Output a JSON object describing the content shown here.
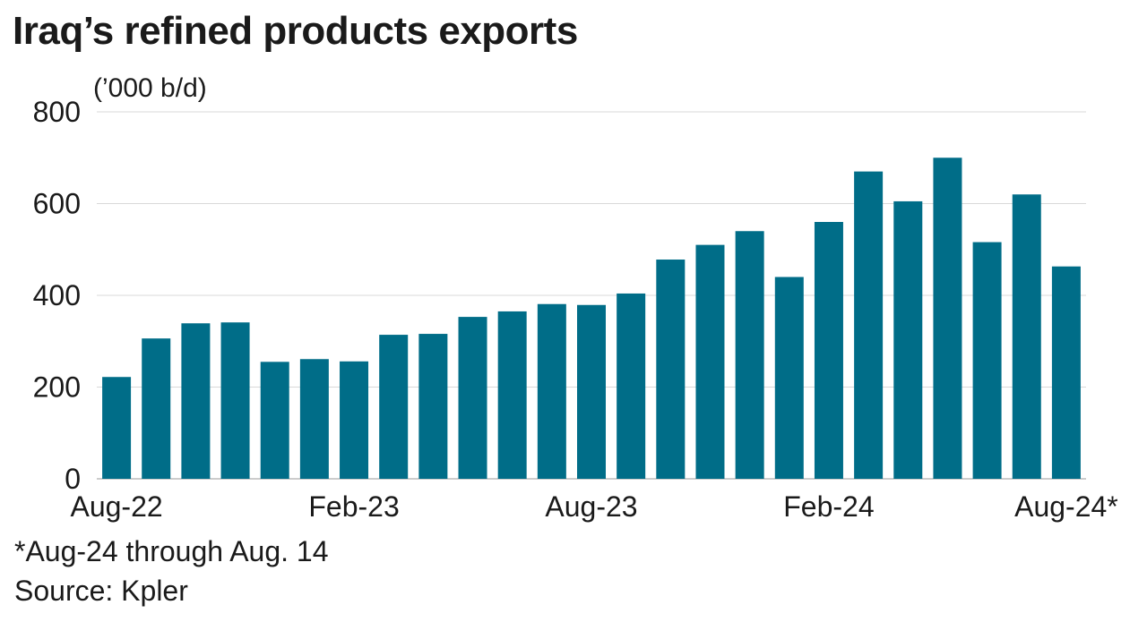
{
  "chart_data": {
    "type": "bar",
    "title": "Iraq’s refined products exports",
    "unit_label": "(’000 b/d)",
    "categories": [
      "Aug-22",
      "Sep-22",
      "Oct-22",
      "Nov-22",
      "Dec-22",
      "Jan-23",
      "Feb-23",
      "Mar-23",
      "Apr-23",
      "May-23",
      "Jun-23",
      "Jul-23",
      "Aug-23",
      "Sep-23",
      "Oct-23",
      "Nov-23",
      "Dec-23",
      "Jan-24",
      "Feb-24",
      "Mar-24",
      "Apr-24",
      "May-24",
      "Jun-24",
      "Jul-24",
      "Aug-24*"
    ],
    "x_tick_labels": [
      {
        "index": 0,
        "label": "Aug-22"
      },
      {
        "index": 6,
        "label": "Feb-23"
      },
      {
        "index": 12,
        "label": "Aug-23"
      },
      {
        "index": 18,
        "label": "Feb-24"
      },
      {
        "index": 24,
        "label": "Aug-24*"
      }
    ],
    "values": [
      222,
      306,
      339,
      341,
      255,
      261,
      256,
      314,
      316,
      353,
      365,
      381,
      379,
      404,
      478,
      510,
      540,
      440,
      560,
      670,
      605,
      700,
      516,
      620,
      463
    ],
    "ylim": [
      0,
      800
    ],
    "y_ticks": [
      0,
      200,
      400,
      600,
      800
    ],
    "grid": true,
    "bar_color": "#006d88",
    "grid_color": "#d9d9d9"
  },
  "footnote": "*Aug-24 through Aug. 14",
  "source": "Source: Kpler"
}
